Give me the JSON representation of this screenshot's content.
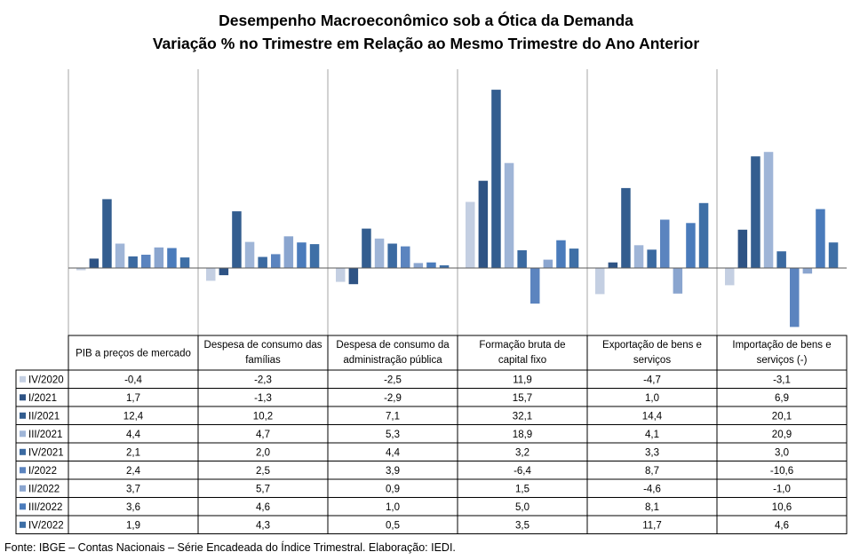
{
  "chart_data": {
    "type": "bar",
    "title": "Desempenho Macroeconômico  sob a Ótica da Demanda",
    "subtitle": "Variação % no Trimestre em Relação ao Mesmo Trimestre do Ano Anterior",
    "categories": [
      "PIB a preços de mercado",
      "Despesa de consumo das famílias",
      "Despesa de consumo da administração pública",
      "Formação bruta de capital fixo",
      "Exportação de bens e serviços",
      "Importação de bens e serviços (-)"
    ],
    "series": [
      {
        "name": "IV/2020",
        "color": "#c4cfe2",
        "values": [
          -0.4,
          -2.3,
          -2.5,
          11.9,
          -4.7,
          -3.1
        ],
        "labels": [
          "-0,4",
          "-2,3",
          "-2,5",
          "11,9",
          "-4,7",
          "-3,1"
        ]
      },
      {
        "name": "I/2021",
        "color": "#2e5384",
        "values": [
          1.7,
          -1.3,
          -2.9,
          15.7,
          1.0,
          6.9
        ],
        "labels": [
          "1,7",
          "-1,3",
          "-2,9",
          "15,7",
          "1,0",
          "6,9"
        ]
      },
      {
        "name": "II/2021",
        "color": "#335d8f",
        "values": [
          12.4,
          10.2,
          7.1,
          32.1,
          14.4,
          20.1
        ],
        "labels": [
          "12,4",
          "10,2",
          "7,1",
          "32,1",
          "14,4",
          "20,1"
        ]
      },
      {
        "name": "III/2021",
        "color": "#9fb5d7",
        "values": [
          4.4,
          4.7,
          5.3,
          18.9,
          4.1,
          20.9
        ],
        "labels": [
          "4,4",
          "4,7",
          "5,3",
          "18,9",
          "4,1",
          "20,9"
        ]
      },
      {
        "name": "IV/2021",
        "color": "#3b6aa1",
        "values": [
          2.1,
          2.0,
          4.4,
          3.2,
          3.3,
          3.0
        ],
        "labels": [
          "2,1",
          "2,0",
          "4,4",
          "3,2",
          "3,3",
          "3,0"
        ]
      },
      {
        "name": "I/2022",
        "color": "#5b84bf",
        "values": [
          2.4,
          2.5,
          3.9,
          -6.4,
          8.7,
          -10.6
        ],
        "labels": [
          "2,4",
          "2,5",
          "3,9",
          "-6,4",
          "8,7",
          "-10,6"
        ]
      },
      {
        "name": "II/2022",
        "color": "#8aa5cf",
        "values": [
          3.7,
          5.7,
          0.9,
          1.5,
          -4.6,
          -1.0
        ],
        "labels": [
          "3,7",
          "5,7",
          "0,9",
          "1,5",
          "-4,6",
          "-1,0"
        ]
      },
      {
        "name": "III/2022",
        "color": "#4a7bbb",
        "values": [
          3.6,
          4.6,
          1.0,
          5.0,
          8.1,
          10.6
        ],
        "labels": [
          "3,6",
          "4,6",
          "1,0",
          "5,0",
          "8,1",
          "10,6"
        ]
      },
      {
        "name": "IV/2022",
        "color": "#3e6fa6",
        "values": [
          1.9,
          4.3,
          0.5,
          3.5,
          11.7,
          4.6
        ],
        "labels": [
          "1,9",
          "4,3",
          "0,5",
          "3,5",
          "11,7",
          "4,6"
        ]
      }
    ],
    "legend": "data-table-below",
    "grid": false
  },
  "footnote": "Fonte: IBGE – Contas Nacionais – Série Encadeada do Índice Trimestral. Elaboração: IEDI."
}
